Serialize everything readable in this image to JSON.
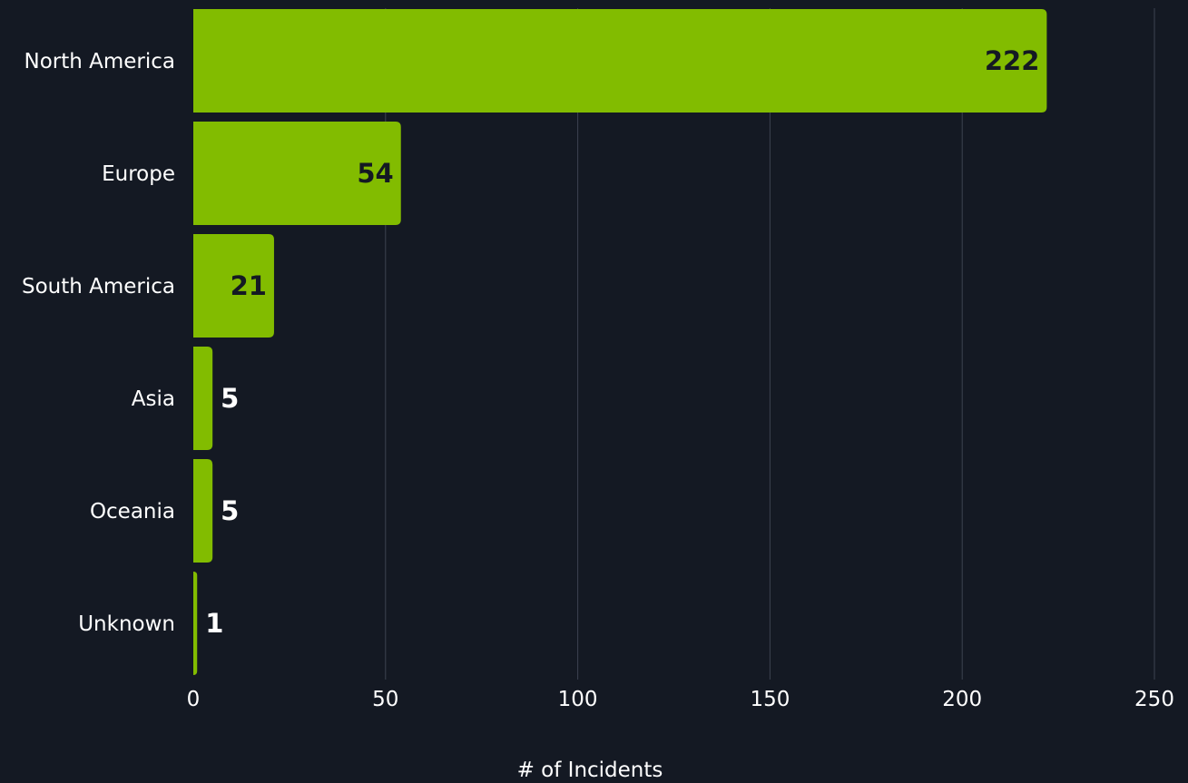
{
  "chart_data": {
    "type": "bar",
    "orientation": "horizontal",
    "title": "",
    "xlabel": "# of Incidents",
    "ylabel": "",
    "categories": [
      "North America",
      "Europe",
      "South America",
      "Asia",
      "Oceania",
      "Unknown"
    ],
    "values": [
      222,
      54,
      21,
      5,
      5,
      1
    ],
    "data_labels": [
      "222",
      "54",
      "21",
      "5",
      "5",
      "1"
    ],
    "xlim": [
      0,
      250
    ],
    "xticks": [
      0,
      50,
      100,
      150,
      200,
      250
    ],
    "xtick_labels": [
      "0",
      "50",
      "100",
      "150",
      "200",
      "250"
    ],
    "grid": "vertical",
    "legend": "none"
  },
  "colors": {
    "background": "#141923",
    "bar": "#82bc00",
    "grid": "#3c4350",
    "text": "#ffffff",
    "label_inside": "#141923"
  }
}
